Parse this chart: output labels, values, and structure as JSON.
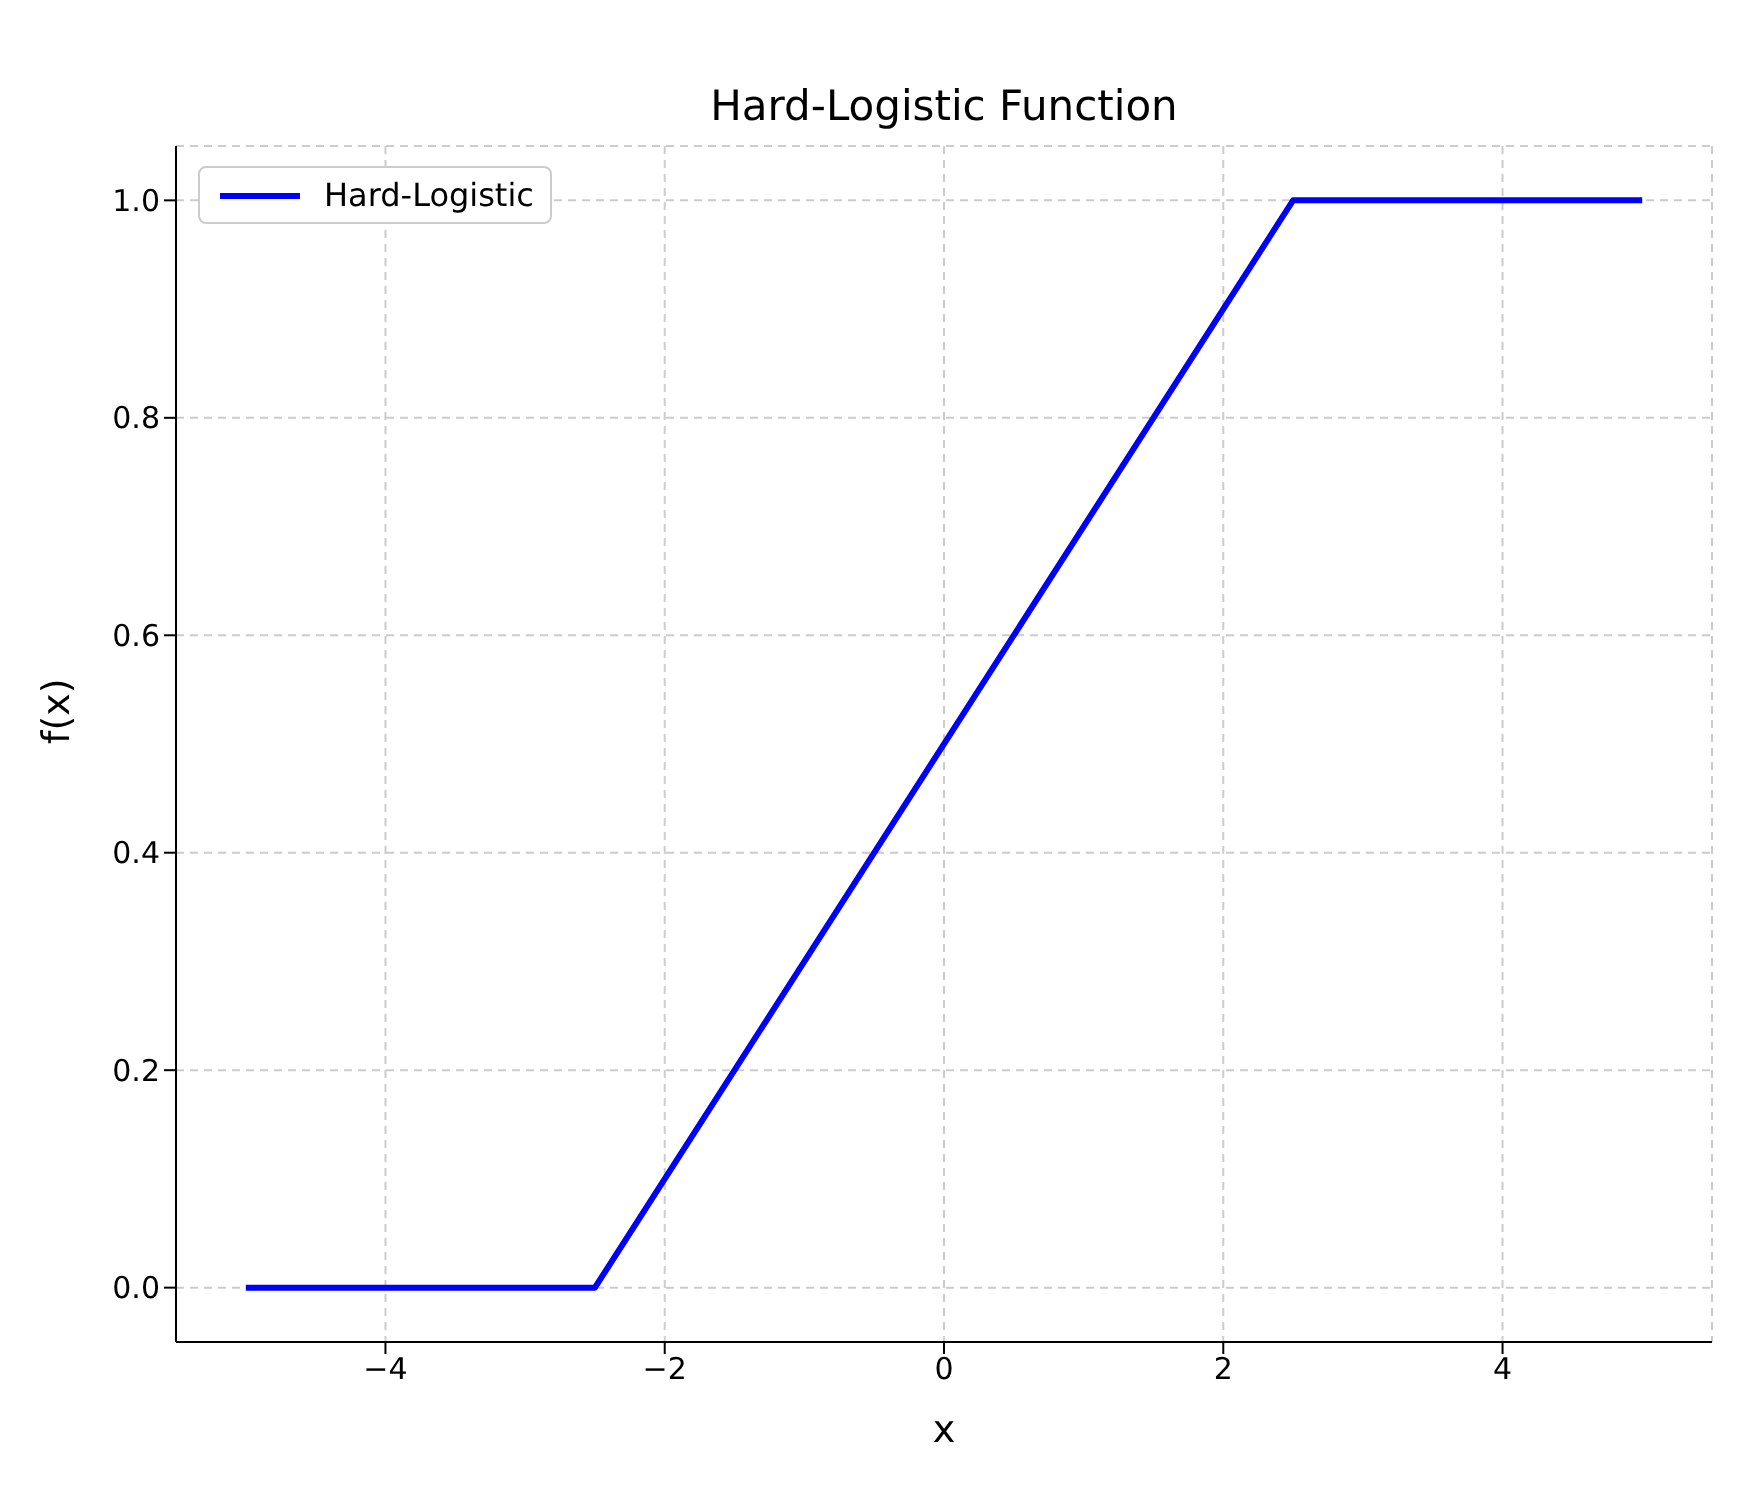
{
  "chart_data": {
    "type": "line",
    "title": "Hard-Logistic Function",
    "xlabel": "x",
    "ylabel": "f(x)",
    "x": [
      -5,
      -2.5,
      2.5,
      5
    ],
    "series": [
      {
        "name": "Hard-Logistic",
        "color": "#0000ff",
        "values": [
          0,
          0,
          1,
          1
        ]
      }
    ],
    "xlim": [
      -5.5,
      5.5
    ],
    "xticks": [
      {
        "value": -4,
        "label": "−4"
      },
      {
        "value": -2,
        "label": "−2"
      },
      0,
      2,
      4
    ],
    "ylim": [
      -0.05,
      1.05
    ],
    "yticks": [
      {
        "value": 0,
        "label": "0.0"
      },
      {
        "value": 0.2,
        "label": "0.2"
      },
      {
        "value": 0.4,
        "label": "0.4"
      },
      {
        "value": 0.6,
        "label": "0.6"
      },
      {
        "value": 0.8,
        "label": "0.8"
      },
      {
        "value": 1,
        "label": "1.0"
      }
    ],
    "grid": true,
    "legend": "top left",
    "marker": "none",
    "line_style": "solid"
  }
}
